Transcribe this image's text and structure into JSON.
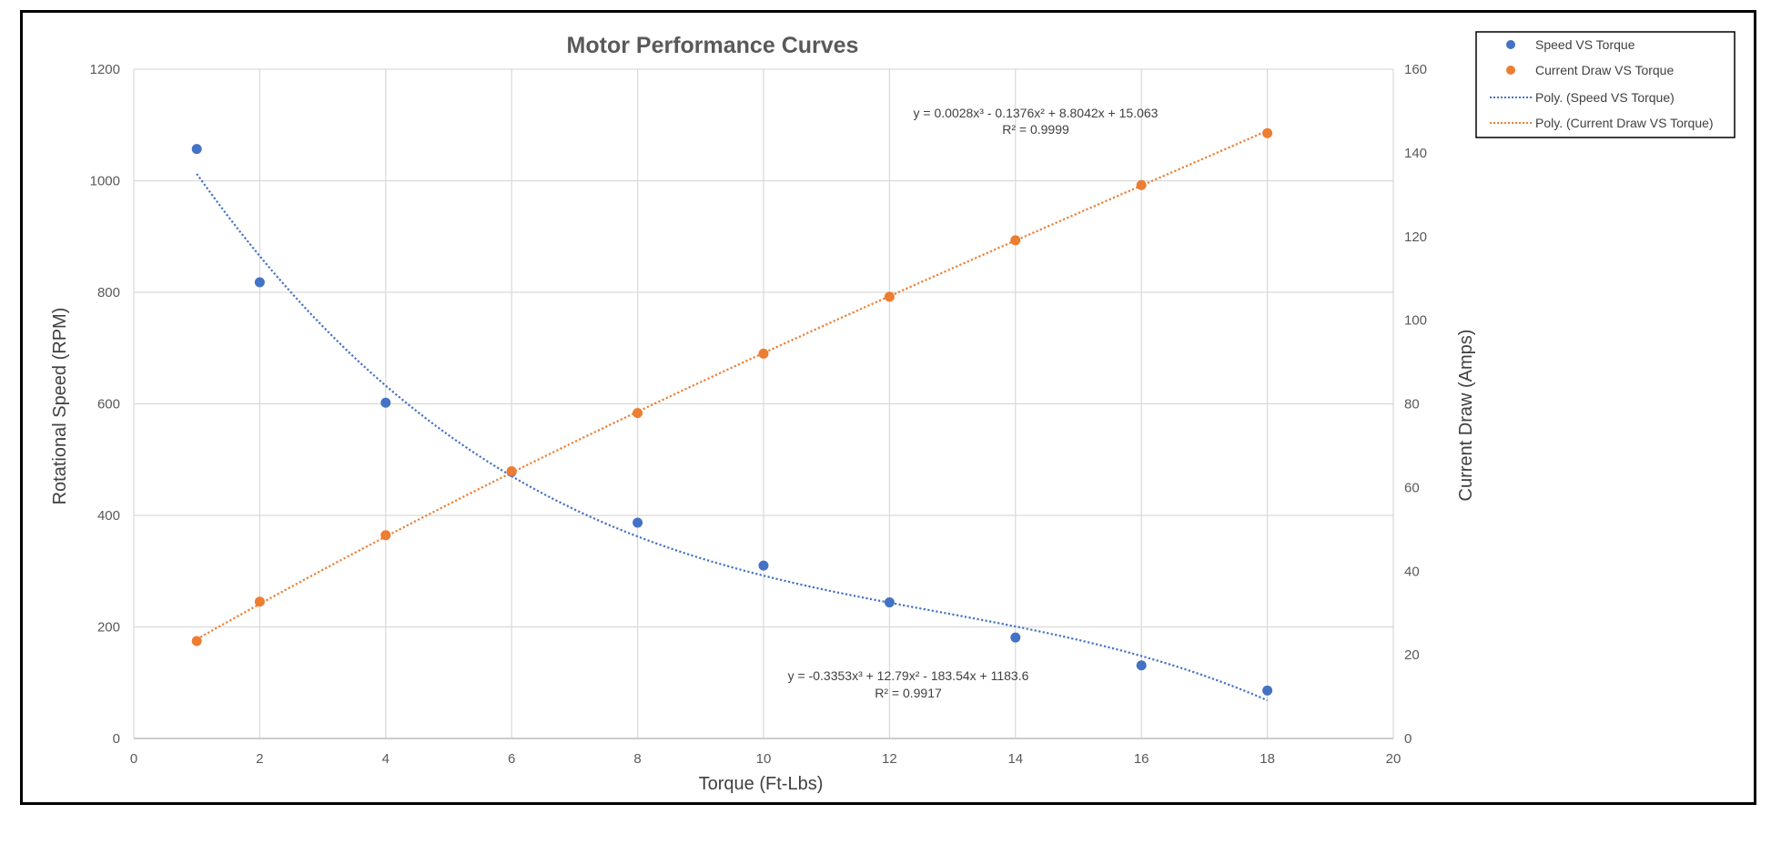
{
  "chart_data": {
    "type": "scatter",
    "title": "Motor Performance Curves",
    "xlabel": "Torque (Ft-Lbs)",
    "ylabel": "Rotational Speed (RPM)",
    "y2label": "Current Draw (Amps)",
    "xlim": [
      0,
      20
    ],
    "ylim": [
      0,
      1200
    ],
    "y2lim": [
      0,
      160
    ],
    "x_ticks": [
      "0",
      "2",
      "4",
      "6",
      "8",
      "10",
      "12",
      "14",
      "16",
      "18",
      "20"
    ],
    "y_ticks": [
      "0",
      "200",
      "400",
      "600",
      "800",
      "1000",
      "1200"
    ],
    "y2_ticks": [
      "0",
      "20",
      "40",
      "60",
      "80",
      "100",
      "120",
      "140",
      "160"
    ],
    "grid": true,
    "legend_position": "top-right",
    "series": [
      {
        "name": "Speed VS Torque",
        "axis": "left",
        "color": "#4472C4",
        "x": [
          1,
          2,
          4,
          6,
          8,
          10,
          12,
          14,
          16,
          18
        ],
        "y": [
          1057,
          818,
          602,
          478,
          387,
          310,
          244,
          181,
          131,
          86
        ]
      },
      {
        "name": "Current Draw VS Torque",
        "axis": "right",
        "color": "#ED7D31",
        "x": [
          1,
          2,
          4,
          6,
          8,
          10,
          12,
          14,
          16,
          18
        ],
        "y": [
          23.3,
          32.7,
          48.6,
          63.9,
          77.8,
          92.0,
          105.6,
          119.1,
          132.3,
          144.7
        ]
      }
    ],
    "trendlines": [
      {
        "name": "Poly. (Speed VS Torque)",
        "axis": "left",
        "color": "#4472C4",
        "coefficients": [
          -0.3353,
          12.79,
          -183.54,
          1183.6
        ],
        "x_range": [
          1,
          18
        ],
        "equation": "y = -0.3353x³ + 12.79x² - 183.54x + 1183.6",
        "r2": "R² = 0.9917"
      },
      {
        "name": "Poly. (Current Draw VS Torque)",
        "axis": "right",
        "color": "#ED7D31",
        "coefficients": [
          0.0028,
          -0.1376,
          8.8042,
          15.063
        ],
        "x_range": [
          1,
          18
        ],
        "equation": "y = 0.0028x³ - 0.1376x² + 8.8042x + 15.063",
        "r2": "R² = 0.9999"
      }
    ]
  },
  "legend": {
    "items": [
      {
        "label": "Speed VS Torque",
        "kind": "marker",
        "color": "#4472C4"
      },
      {
        "label": "Current Draw VS Torque",
        "kind": "marker",
        "color": "#ED7D31"
      },
      {
        "label": "Poly. (Speed VS Torque)",
        "kind": "dotted-line",
        "color": "#4472C4"
      },
      {
        "label": "Poly. (Current Draw VS Torque)",
        "kind": "dotted-line",
        "color": "#ED7D31"
      }
    ]
  },
  "colors": {
    "grid": "#d9d9d9",
    "text": "#595959",
    "frame": "#000000"
  }
}
